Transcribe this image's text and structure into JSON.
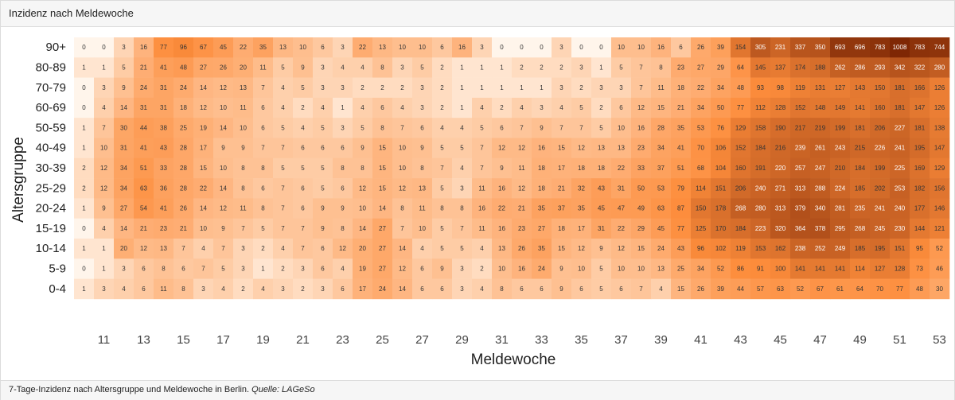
{
  "header": {
    "title": "Inzidenz nach Meldewoche"
  },
  "footer": {
    "caption_text": "7-Tage-Inzidenz nach Altersgruppe und Meldewoche in Berlin.",
    "caption_source_label": "Quelle: LAGeSo"
  },
  "chart_data": {
    "type": "heatmap",
    "title": "",
    "xlabel": "Meldewoche",
    "ylabel": "Altersgruppe",
    "x": [
      10,
      11,
      12,
      13,
      14,
      15,
      16,
      17,
      18,
      19,
      20,
      21,
      22,
      23,
      24,
      25,
      26,
      27,
      28,
      29,
      30,
      31,
      32,
      33,
      34,
      35,
      36,
      37,
      38,
      39,
      40,
      41,
      42,
      43,
      44,
      45,
      46,
      47,
      48,
      49,
      50,
      51,
      52,
      53
    ],
    "x_tick_labels": [
      "11",
      "13",
      "15",
      "17",
      "19",
      "21",
      "23",
      "25",
      "27",
      "29",
      "31",
      "33",
      "35",
      "37",
      "39",
      "41",
      "43",
      "45",
      "47",
      "49",
      "51",
      "53"
    ],
    "y": [
      "90+",
      "80-89",
      "70-79",
      "60-69",
      "50-59",
      "40-49",
      "30-39",
      "25-29",
      "20-24",
      "15-19",
      "10-14",
      "5-9",
      "0-4"
    ],
    "colorscale": {
      "low": "#fff5eb",
      "mid": "#fd8d3c",
      "high": "#7f2704"
    },
    "values": [
      [
        0,
        0,
        3,
        16,
        77,
        96,
        67,
        45,
        22,
        35,
        13,
        10,
        6,
        3,
        22,
        13,
        10,
        10,
        6,
        16,
        3,
        0,
        0,
        0,
        3,
        0,
        0,
        10,
        10,
        16,
        6,
        26,
        39,
        154,
        305,
        231,
        337,
        350,
        693,
        696,
        783,
        1008,
        783,
        744
      ],
      [
        1,
        1,
        5,
        21,
        41,
        48,
        27,
        26,
        20,
        11,
        5,
        9,
        3,
        4,
        4,
        8,
        3,
        5,
        2,
        1,
        1,
        1,
        2,
        2,
        2,
        3,
        1,
        5,
        7,
        8,
        23,
        27,
        29,
        64,
        145,
        137,
        174,
        188,
        262,
        286,
        293,
        342,
        322,
        280
      ],
      [
        0,
        3,
        9,
        24,
        31,
        24,
        14,
        12,
        13,
        7,
        4,
        5,
        3,
        3,
        2,
        2,
        2,
        3,
        2,
        1,
        1,
        1,
        1,
        1,
        3,
        2,
        3,
        3,
        7,
        11,
        18,
        22,
        34,
        48,
        93,
        98,
        119,
        131,
        127,
        143,
        150,
        181,
        166,
        126
      ],
      [
        0,
        4,
        14,
        31,
        31,
        18,
        12,
        10,
        11,
        6,
        4,
        2,
        4,
        1,
        4,
        6,
        4,
        3,
        2,
        1,
        4,
        2,
        4,
        3,
        4,
        5,
        2,
        6,
        12,
        15,
        21,
        34,
        50,
        77,
        112,
        128,
        152,
        148,
        149,
        141,
        160,
        181,
        147,
        126
      ],
      [
        1,
        7,
        30,
        44,
        38,
        25,
        19,
        14,
        10,
        6,
        5,
        4,
        5,
        3,
        5,
        8,
        7,
        6,
        4,
        4,
        5,
        6,
        7,
        9,
        7,
        7,
        5,
        10,
        16,
        28,
        35,
        53,
        76,
        129,
        158,
        190,
        217,
        219,
        199,
        181,
        206,
        227,
        181,
        138
      ],
      [
        1,
        10,
        31,
        41,
        43,
        28,
        17,
        9,
        9,
        7,
        7,
        6,
        6,
        6,
        9,
        15,
        10,
        9,
        5,
        5,
        7,
        12,
        12,
        16,
        15,
        12,
        13,
        13,
        23,
        34,
        41,
        70,
        106,
        152,
        184,
        216,
        239,
        261,
        243,
        215,
        226,
        241,
        195,
        147
      ],
      [
        2,
        12,
        34,
        51,
        33,
        28,
        15,
        10,
        8,
        8,
        5,
        5,
        5,
        8,
        8,
        15,
        10,
        8,
        7,
        4,
        7,
        9,
        11,
        18,
        17,
        18,
        18,
        22,
        33,
        37,
        51,
        68,
        104,
        160,
        191,
        220,
        257,
        247,
        210,
        184,
        199,
        225,
        169,
        129
      ],
      [
        2,
        12,
        34,
        63,
        36,
        28,
        22,
        14,
        8,
        6,
        7,
        6,
        5,
        6,
        12,
        15,
        12,
        13,
        5,
        3,
        11,
        16,
        12,
        18,
        21,
        32,
        43,
        31,
        50,
        53,
        79,
        114,
        151,
        206,
        240,
        271,
        313,
        288,
        224,
        185,
        202,
        253,
        182,
        156
      ],
      [
        1,
        9,
        27,
        54,
        41,
        26,
        14,
        12,
        11,
        8,
        7,
        6,
        9,
        9,
        10,
        14,
        8,
        11,
        8,
        8,
        16,
        22,
        21,
        35,
        37,
        35,
        45,
        47,
        49,
        63,
        87,
        150,
        178,
        268,
        280,
        313,
        379,
        340,
        281,
        235,
        241,
        240,
        177,
        146
      ],
      [
        0,
        4,
        14,
        21,
        23,
        21,
        10,
        9,
        7,
        5,
        7,
        7,
        9,
        8,
        14,
        27,
        7,
        10,
        5,
        7,
        11,
        16,
        23,
        27,
        18,
        17,
        31,
        22,
        29,
        45,
        77,
        125,
        170,
        184,
        223,
        320,
        364,
        378,
        295,
        268,
        245,
        230,
        144,
        121
      ],
      [
        1,
        1,
        20,
        12,
        13,
        7,
        4,
        7,
        3,
        2,
        4,
        7,
        6,
        12,
        20,
        27,
        14,
        4,
        5,
        5,
        4,
        13,
        26,
        35,
        15,
        12,
        9,
        12,
        15,
        24,
        43,
        96,
        102,
        119,
        153,
        162,
        238,
        252,
        249,
        185,
        195,
        151,
        95,
        52
      ],
      [
        0,
        1,
        3,
        6,
        8,
        6,
        7,
        5,
        3,
        1,
        2,
        3,
        6,
        4,
        19,
        27,
        12,
        6,
        9,
        3,
        2,
        10,
        16,
        24,
        9,
        10,
        5,
        10,
        10,
        13,
        25,
        34,
        52,
        86,
        91,
        100,
        141,
        141,
        141,
        114,
        127,
        128,
        73,
        46
      ],
      [
        1,
        3,
        4,
        6,
        11,
        8,
        3,
        4,
        2,
        4,
        3,
        2,
        3,
        6,
        17,
        24,
        14,
        6,
        6,
        3,
        4,
        8,
        6,
        6,
        9,
        6,
        5,
        6,
        7,
        4,
        15,
        26,
        39,
        44,
        57,
        63,
        52,
        67,
        61,
        64,
        70,
        77,
        48,
        30
      ]
    ]
  }
}
